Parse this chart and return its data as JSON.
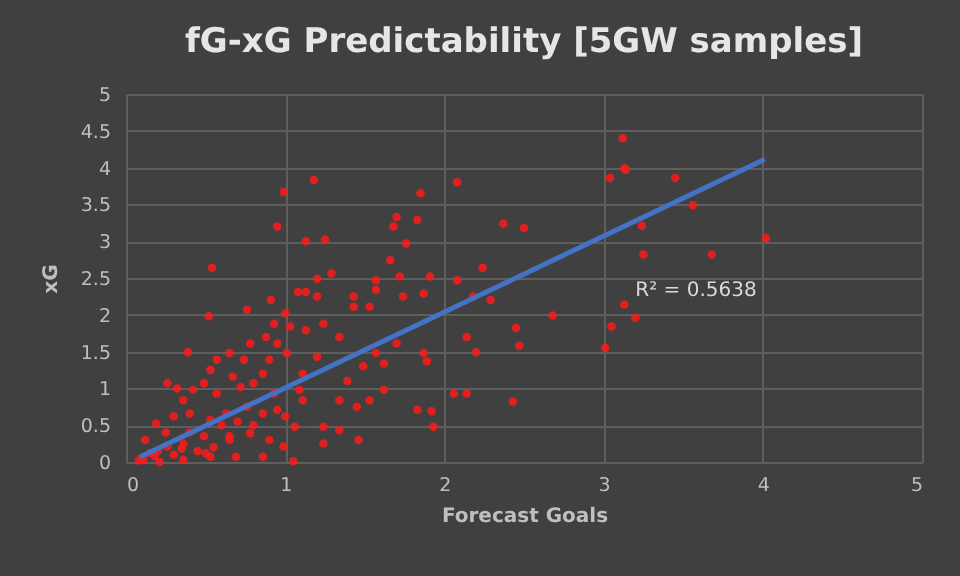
{
  "chart_data": {
    "type": "scatter",
    "title": "fG-xG Predictability [5GW samples]",
    "xlabel": "Forecast Goals",
    "ylabel": "xG",
    "xlim": [
      0,
      5
    ],
    "xticks": [
      0,
      1,
      2,
      3,
      4,
      5
    ],
    "ylim": [
      0,
      5
    ],
    "yticks": [
      0,
      0.5,
      1,
      1.5,
      2,
      2.5,
      3,
      3.5,
      4,
      4.5,
      5
    ],
    "grid": true,
    "annotations": [
      "R² = 0.5638"
    ],
    "series": [
      {
        "marker": "circle",
        "color": "#ff1a1a",
        "x": [
          1.18,
          0.99,
          2.08,
          1.85,
          1.7,
          1.83,
          1.68,
          1.76,
          0.95,
          1.13,
          1.25,
          2.37,
          2.5,
          0.54,
          1.66,
          2.24,
          2.08,
          1.91,
          1.72,
          1.57,
          1.29,
          1.2,
          1.08,
          1.13,
          1.2,
          1.43,
          1.57,
          1.74,
          1.87,
          2.18,
          2.29,
          0.91,
          0.76,
          1.43,
          1.53,
          0.52,
          1.0,
          2.45,
          2.14,
          2.47,
          2.2,
          1.87,
          1.89,
          1.7,
          1.57,
          1.62,
          1.49,
          1.34,
          1.24,
          1.13,
          0.78,
          0.65,
          0.39,
          0.53,
          2.06,
          2.14,
          2.43,
          1.83,
          1.93,
          1.92,
          1.62,
          1.53,
          1.39,
          1.45,
          1.34,
          1.24,
          1.34,
          1.46,
          1.24,
          1.06,
          1.05,
          1.11,
          1.0,
          3.12,
          3.04,
          3.13,
          3.14,
          3.45,
          3.56,
          3.24,
          3.25,
          3.68,
          4.02,
          3.13,
          3.2,
          3.05,
          3.01,
          2.68,
          0.26,
          0.32,
          0.36,
          0.42,
          0.49,
          0.57,
          0.67,
          0.72,
          0.8,
          0.86,
          0.93,
          0.95,
          0.86,
          0.76,
          0.63,
          0.53,
          0.4,
          0.3,
          0.19,
          0.78,
          0.9,
          0.99,
          0.65,
          0.49,
          0.36,
          0.26,
          0.15,
          0.86,
          0.69,
          0.53,
          0.36,
          0.21,
          0.11,
          0.57,
          0.74,
          0.9,
          1.01,
          0.88,
          0.95,
          1.03,
          0.93,
          1.11,
          1.2,
          1.09,
          0.1,
          0.2,
          0.3,
          0.4,
          0.45,
          0.6,
          0.7,
          0.12,
          0.25,
          0.55,
          0.8,
          0.08,
          0.18,
          0.35,
          0.5,
          0.65
        ],
        "values": [
          3.83,
          3.67,
          3.8,
          3.65,
          3.33,
          3.29,
          3.2,
          2.97,
          3.2,
          3.0,
          3.02,
          3.24,
          3.18,
          2.64,
          2.74,
          2.64,
          2.47,
          2.52,
          2.52,
          2.47,
          2.56,
          2.49,
          2.31,
          2.31,
          2.25,
          2.25,
          2.34,
          2.25,
          2.29,
          2.25,
          2.2,
          2.2,
          2.07,
          2.11,
          2.11,
          1.98,
          2.02,
          1.82,
          1.7,
          1.58,
          1.49,
          1.48,
          1.37,
          1.61,
          1.48,
          1.34,
          1.3,
          1.7,
          1.88,
          1.79,
          1.61,
          1.48,
          1.49,
          1.25,
          0.93,
          0.93,
          0.82,
          0.71,
          0.48,
          0.69,
          0.98,
          0.84,
          1.1,
          0.75,
          0.84,
          0.48,
          0.43,
          0.3,
          0.25,
          0.48,
          0.01,
          0.84,
          0.62,
          4.4,
          3.86,
          3.99,
          3.97,
          3.86,
          3.49,
          3.21,
          2.82,
          2.82,
          3.04,
          2.14,
          1.96,
          1.84,
          1.55,
          1.99,
          1.07,
          1.0,
          0.84,
          0.98,
          1.07,
          0.93,
          1.16,
          1.02,
          1.07,
          1.2,
          0.93,
          0.71,
          0.66,
          0.75,
          0.66,
          0.57,
          0.66,
          0.62,
          0.52,
          0.39,
          0.3,
          0.21,
          0.3,
          0.35,
          0.25,
          0.21,
          0.12,
          0.07,
          0.07,
          0.07,
          0.03,
          0.0,
          0.03,
          1.39,
          1.39,
          1.39,
          1.48,
          1.7,
          1.61,
          1.84,
          1.88,
          1.2,
          1.43,
          0.98,
          0.05,
          0.15,
          0.1,
          0.4,
          0.15,
          0.5,
          0.55,
          0.3,
          0.4,
          0.2,
          0.5,
          0.02,
          0.08,
          0.18,
          0.12,
          0.35
        ]
      },
      {
        "type": "line",
        "color": "#4472c4",
        "x": [
          0.1,
          4.0
        ],
        "values": [
          0.08,
          4.1
        ]
      }
    ]
  }
}
